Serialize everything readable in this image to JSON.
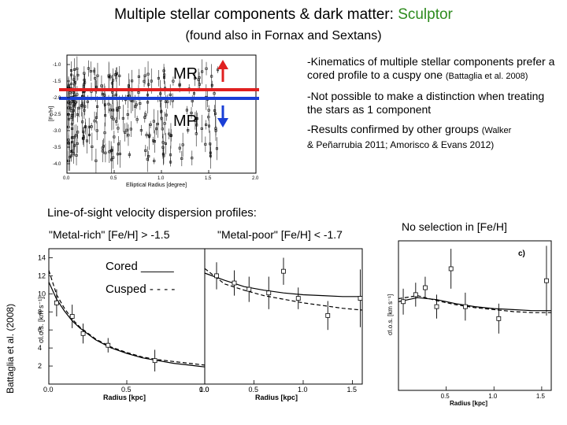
{
  "slide": {
    "title_main": "Multiple stellar components & dark matter: ",
    "title_accent": "Sculptor",
    "subtitle": "(found also in Fornax and Sextans)",
    "accent_color": "#2e8b1e"
  },
  "metallicity_panel": {
    "ylabel": "[Fe/H]",
    "xlabel": "Elliptical Radius [degree]",
    "x_ticks": [
      "0.0",
      "0.5",
      "1.0",
      "1.5",
      "2.0"
    ],
    "y_ticks": [
      "-1.0",
      "-1.5",
      "-2.0",
      "-2.5",
      "-3.0",
      "-3.5",
      "-4.0"
    ],
    "mr_label": "MR",
    "mp_label": "MP",
    "mr_color": "#e02020",
    "mp_color": "#1a3fd6"
  },
  "bullets": [
    {
      "text": "-Kinematics of multiple stellar components prefer a cored profile to a cuspy one ",
      "ref": "(Battaglia et al. 2008)"
    },
    {
      "text": "-Not possible to make a distinction when treating the stars as 1 component",
      "ref": ""
    },
    {
      "text": "-Results confirmed by other groups ",
      "ref": "(Walker",
      "ref2": "& Peñarrubia 2011; Amorisco & Evans 2012)"
    }
  ],
  "dispersion": {
    "section_title": "Line-of-sight velocity dispersion profiles:",
    "metal_rich_label": "\"Metal-rich\" [Fe/H] > -1.5",
    "metal_poor_label": "\"Metal-poor\" [Fe/H] < -1.7",
    "no_selection_label": "No selection in [Fe/H]",
    "cored_label": "Cored  _____",
    "cusped_label": "Cusped - - - -",
    "side_credit": "Battaglia et al. (2008)",
    "ylabel": "σl.o.s. [km s⁻¹]",
    "xlabel": "Radius [kpc]",
    "panel_c_label": "c)",
    "x_ticks": [
      "0.0",
      "0.5",
      "1.0",
      "1.5"
    ],
    "y_ticks": [
      "2",
      "4",
      "6",
      "8",
      "10",
      "12",
      "14"
    ]
  },
  "chart_data": [
    {
      "type": "line",
      "title": "\"Metal-rich\" [Fe/H] > -1.5",
      "xlabel": "Radius [kpc]",
      "ylabel": "σl.o.s. [km s⁻¹]",
      "xlim": [
        0,
        1.0
      ],
      "ylim": [
        0,
        15
      ],
      "points": [
        {
          "x": 0.05,
          "y": 9.0,
          "err": 1.5
        },
        {
          "x": 0.15,
          "y": 7.5,
          "err": 1.3
        },
        {
          "x": 0.22,
          "y": 5.6,
          "err": 1.1
        },
        {
          "x": 0.38,
          "y": 4.3,
          "err": 0.8
        },
        {
          "x": 0.68,
          "y": 2.6,
          "err": 1.2
        }
      ],
      "series": [
        {
          "name": "Cored",
          "style": "solid",
          "x": [
            0.0,
            0.05,
            0.1,
            0.15,
            0.2,
            0.3,
            0.4,
            0.5,
            0.6,
            0.7,
            0.8,
            0.9,
            1.0
          ],
          "values": [
            11.3,
            9.4,
            8.1,
            7.0,
            6.2,
            4.9,
            4.0,
            3.4,
            2.9,
            2.6,
            2.3,
            2.1,
            1.9
          ]
        },
        {
          "name": "Cusped",
          "style": "dashed",
          "x": [
            0.0,
            0.05,
            0.1,
            0.15,
            0.2,
            0.3,
            0.4,
            0.5,
            0.6,
            0.7,
            0.8,
            0.9,
            1.0
          ],
          "values": [
            12.6,
            9.9,
            8.4,
            7.2,
            6.3,
            5.0,
            4.1,
            3.5,
            3.0,
            2.7,
            2.5,
            2.3,
            2.1
          ]
        }
      ]
    },
    {
      "type": "line",
      "title": "\"Metal-poor\" [Fe/H] < -1.7",
      "xlabel": "Radius [kpc]",
      "xlim": [
        0,
        1.6
      ],
      "ylim": [
        0,
        15
      ],
      "points": [
        {
          "x": 0.12,
          "y": 12.0,
          "err": 1.5
        },
        {
          "x": 0.3,
          "y": 11.2,
          "err": 1.4
        },
        {
          "x": 0.45,
          "y": 10.5,
          "err": 1.4
        },
        {
          "x": 0.65,
          "y": 10.1,
          "err": 1.8
        },
        {
          "x": 0.8,
          "y": 12.5,
          "err": 1.5
        },
        {
          "x": 0.95,
          "y": 9.5,
          "err": 1.2
        },
        {
          "x": 1.25,
          "y": 7.6,
          "err": 1.6
        },
        {
          "x": 1.58,
          "y": 9.5,
          "err": 3.2
        }
      ],
      "series": [
        {
          "name": "Cored",
          "style": "solid",
          "x": [
            0.0,
            0.2,
            0.4,
            0.6,
            0.8,
            1.0,
            1.2,
            1.4,
            1.6
          ],
          "values": [
            12.3,
            11.5,
            10.8,
            10.4,
            10.1,
            9.9,
            9.8,
            9.7,
            9.7
          ]
        },
        {
          "name": "Cusped",
          "style": "dashed",
          "x": [
            0.0,
            0.2,
            0.4,
            0.6,
            0.8,
            1.0,
            1.2,
            1.4,
            1.6
          ],
          "values": [
            12.8,
            11.1,
            10.4,
            9.8,
            9.4,
            9.0,
            8.7,
            8.4,
            8.2
          ]
        }
      ]
    },
    {
      "type": "line",
      "title": "No selection in [Fe/H]",
      "xlabel": "Radius [kpc]",
      "xlim": [
        0,
        1.6
      ],
      "ylim": [
        0,
        15
      ],
      "points": [
        {
          "x": 0.05,
          "y": 8.9,
          "err": 1.3
        },
        {
          "x": 0.18,
          "y": 9.6,
          "err": 1.2
        },
        {
          "x": 0.28,
          "y": 10.3,
          "err": 1.1
        },
        {
          "x": 0.4,
          "y": 8.4,
          "err": 1.2
        },
        {
          "x": 0.55,
          "y": 12.2,
          "err": 2.0
        },
        {
          "x": 0.7,
          "y": 8.4,
          "err": 1.4
        },
        {
          "x": 1.05,
          "y": 7.2,
          "err": 1.5
        },
        {
          "x": 1.55,
          "y": 11.0,
          "err": 3.5
        }
      ],
      "series": [
        {
          "name": "Cored",
          "style": "solid",
          "x": [
            0.0,
            0.2,
            0.4,
            0.6,
            0.8,
            1.0,
            1.2,
            1.4,
            1.6
          ],
          "values": [
            8.9,
            9.3,
            9.1,
            8.7,
            8.4,
            8.2,
            8.1,
            8.0,
            8.0
          ]
        },
        {
          "name": "Cusped",
          "style": "dashed",
          "x": [
            0.0,
            0.2,
            0.4,
            0.6,
            0.8,
            1.0,
            1.2,
            1.4,
            1.6
          ],
          "values": [
            9.2,
            9.5,
            9.0,
            8.6,
            8.3,
            8.1,
            7.9,
            7.8,
            7.8
          ]
        }
      ]
    }
  ]
}
